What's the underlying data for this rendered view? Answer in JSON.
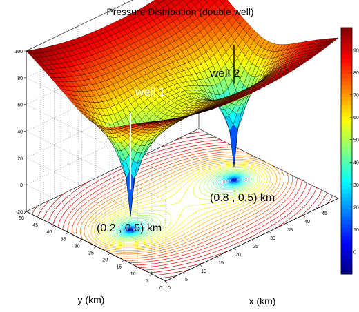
{
  "chart_data": {
    "type": "surface",
    "title": "Pressure Distribution (double well)",
    "xlabel": "x (km)",
    "ylabel": "y (km)",
    "zlabel": "",
    "xlim": [
      0,
      50
    ],
    "ylim": [
      0,
      50
    ],
    "zlim": [
      -20,
      100
    ],
    "x_ticks": [
      "0",
      "5",
      "10",
      "15",
      "20",
      "25",
      "30",
      "35",
      "40",
      "45"
    ],
    "y_ticks": [
      "0",
      "5",
      "10",
      "15",
      "20",
      "25",
      "30",
      "35",
      "40",
      "45",
      "50"
    ],
    "z_ticks": [
      "100",
      "80",
      "60",
      "40",
      "20",
      "0",
      "-20"
    ],
    "colorbar": {
      "min": -10,
      "max": 100,
      "ticks": [
        "90",
        "80",
        "70",
        "60",
        "50",
        "40",
        "30",
        "20",
        "10",
        "0"
      ]
    },
    "wells": [
      {
        "name": "well 1",
        "x_km": 10,
        "y_km": 25,
        "location_label": "(0.2 , 0,5) km",
        "min_pressure": -10
      },
      {
        "name": "well 2",
        "x_km": 40,
        "y_km": 25,
        "location_label": "(0.8 , 0,5) km",
        "min_pressure": -10
      }
    ],
    "boundary_pressure": 100,
    "contour_plane_z": -20,
    "grid": true,
    "colormap": "jet"
  }
}
